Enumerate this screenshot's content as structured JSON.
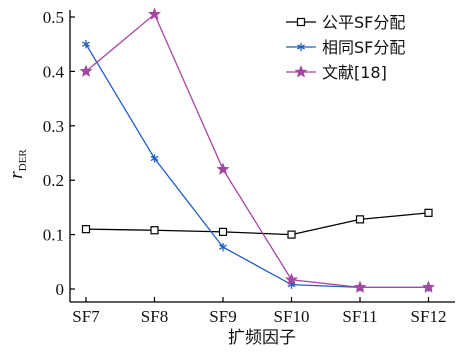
{
  "chart_data": {
    "type": "line",
    "xlabel": "扩频因子",
    "ylabel": {
      "main": "r",
      "sub": "DER"
    },
    "categories": [
      "SF7",
      "SF8",
      "SF9",
      "SF10",
      "SF11",
      "SF12"
    ],
    "y_ticks": [
      "0",
      "0.1",
      "0.2",
      "0.3",
      "0.4",
      "0.5"
    ],
    "ylim": [
      0,
      0.5
    ],
    "grid": false,
    "legend_position": "top-right",
    "series": [
      {
        "name": "公平SF分配",
        "color": "#000000",
        "marker": "square",
        "values": [
          0.11,
          0.108,
          0.105,
          0.1,
          0.128,
          0.14
        ]
      },
      {
        "name": "相同SF分配",
        "color": "#1f5fbf",
        "marker": "asterisk",
        "values": [
          0.45,
          0.24,
          0.077,
          0.008,
          0.003,
          0.003
        ]
      },
      {
        "name": "文献[18]",
        "color": "#a347a3",
        "marker": "star",
        "values": [
          0.4,
          0.505,
          0.22,
          0.017,
          0.003,
          0.003
        ]
      }
    ]
  }
}
